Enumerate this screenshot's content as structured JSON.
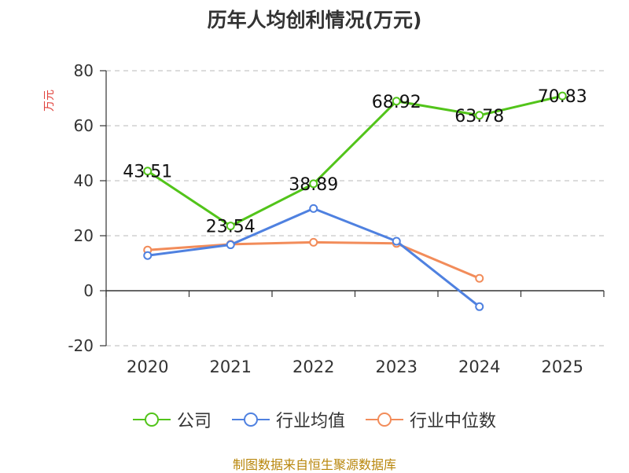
{
  "title": "历年人均创利情况(万元)",
  "source": "制图数据来自恒生聚源数据库",
  "chart_data": {
    "type": "line",
    "title": "历年人均创利情况(万元)",
    "ylabel": "万元",
    "xlabel": "",
    "categories": [
      "2020",
      "2021",
      "2022",
      "2023",
      "2024",
      "2025"
    ],
    "ylim": [
      -20,
      80
    ],
    "yticks": [
      -20,
      0,
      20,
      40,
      60,
      80
    ],
    "grid": true,
    "legend_position": "bottom",
    "series": [
      {
        "name": "公司",
        "color": "#52c41a",
        "values": [
          43.51,
          23.54,
          38.89,
          68.92,
          63.78,
          70.83
        ],
        "show_labels": true,
        "labels": [
          "43.51",
          "23.54",
          "38.89",
          "68.92",
          "63.78",
          "70.83"
        ]
      },
      {
        "name": "行业均值",
        "color": "#4f81e0",
        "values": [
          12.8,
          16.7,
          29.9,
          18.0,
          -5.8,
          null
        ],
        "show_labels": false
      },
      {
        "name": "行业中位数",
        "color": "#f28c5a",
        "values": [
          14.8,
          16.9,
          17.6,
          17.2,
          4.5,
          null
        ],
        "show_labels": false
      }
    ]
  }
}
